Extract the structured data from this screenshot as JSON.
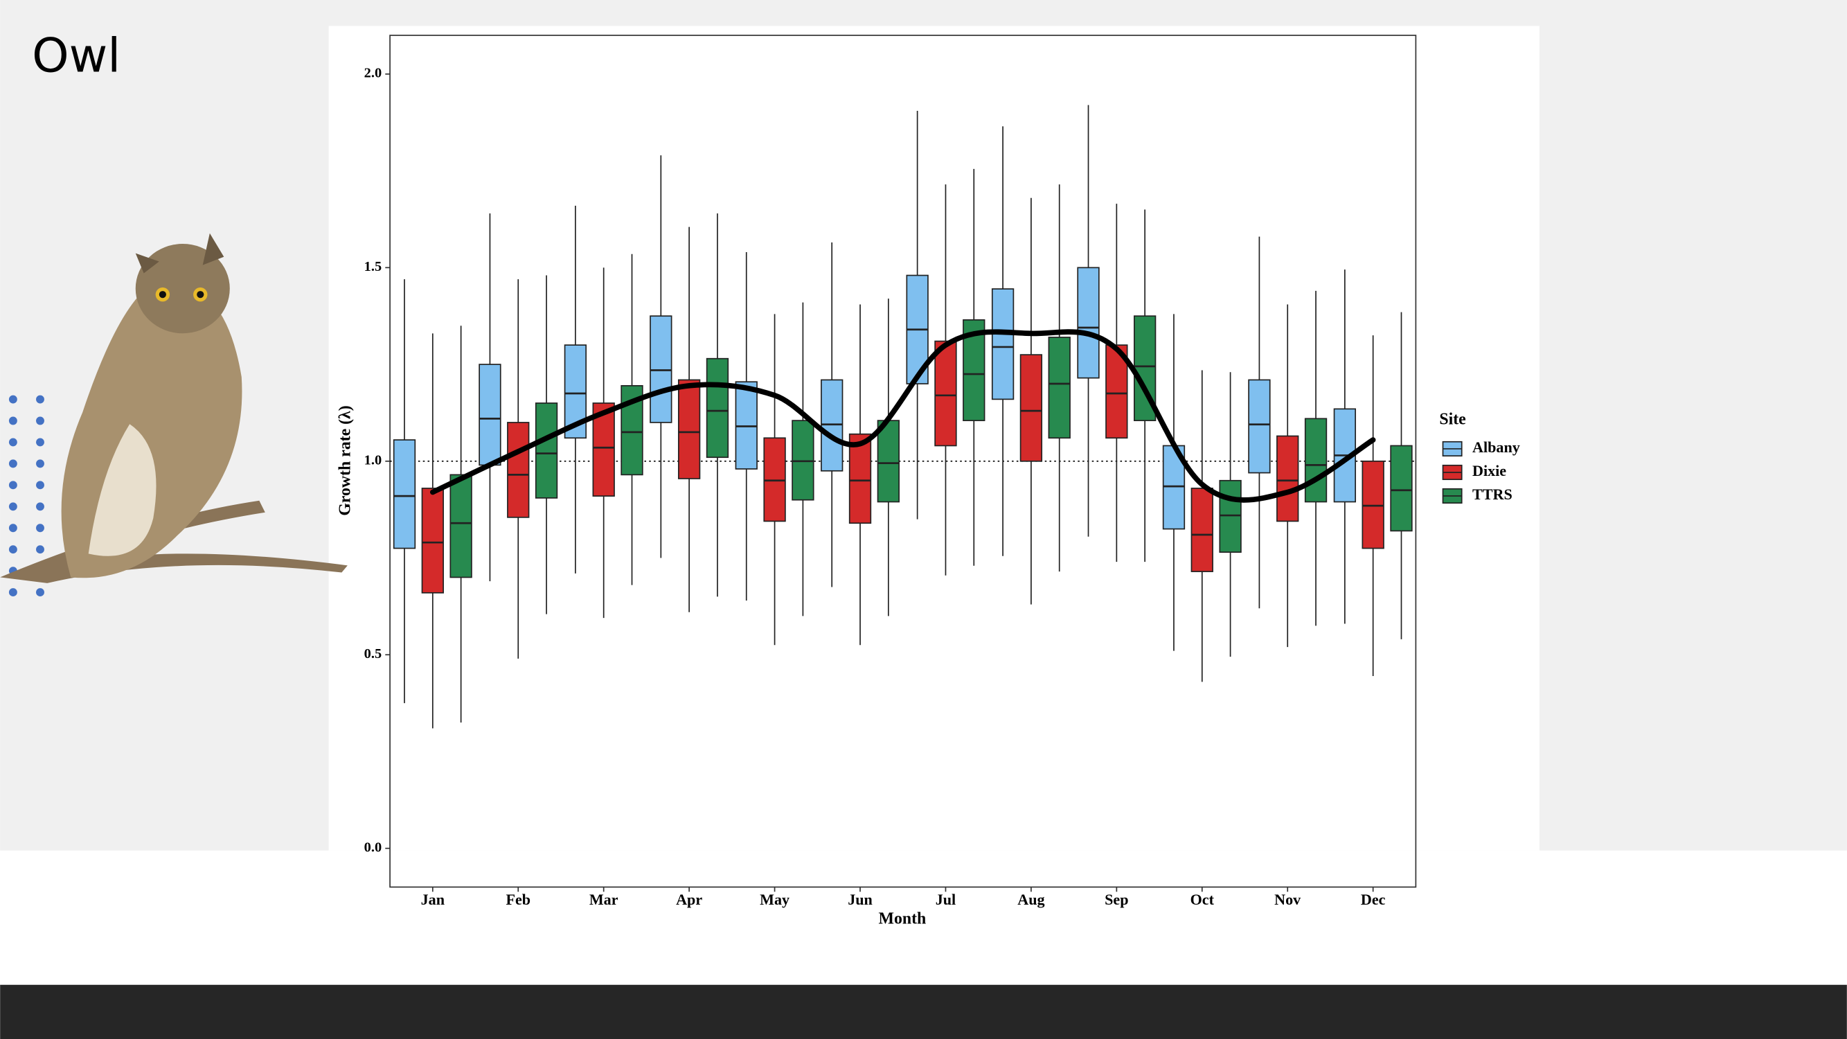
{
  "title": "Owl",
  "chart_data": {
    "type": "box",
    "x_label": "Month",
    "y_label": "Growth rate (λ)",
    "legend_title": "Site",
    "categories": [
      "Jan",
      "Feb",
      "Mar",
      "Apr",
      "May",
      "Jun",
      "Jul",
      "Aug",
      "Sep",
      "Oct",
      "Nov",
      "Dec"
    ],
    "ylim": [
      -0.1,
      2.1
    ],
    "yticks": [
      {
        "value": 0,
        "label": "0.0"
      },
      {
        "value": 0.5,
        "label": "0.5"
      },
      {
        "value": 1,
        "label": "1.0"
      },
      {
        "value": 1.5,
        "label": "1.5"
      },
      {
        "value": 2,
        "label": "2.0"
      }
    ],
    "hline": 1,
    "series": [
      {
        "name": "Albany",
        "color": "#7fbfef",
        "low": [
          0.375,
          0.69,
          0.71,
          0.75,
          0.64,
          0.675,
          0.85,
          0.755,
          0.805,
          0.51,
          0.62,
          0.58
        ],
        "q1": [
          0.775,
          0.99,
          1.06,
          1.1,
          0.98,
          0.975,
          1.2,
          1.16,
          1.215,
          0.825,
          0.97,
          0.895
        ],
        "median": [
          0.91,
          1.11,
          1.175,
          1.235,
          1.09,
          1.095,
          1.34,
          1.295,
          1.345,
          0.935,
          1.095,
          1.015
        ],
        "q3": [
          1.055,
          1.25,
          1.3,
          1.375,
          1.205,
          1.21,
          1.48,
          1.445,
          1.5,
          1.04,
          1.21,
          1.135
        ],
        "high": [
          1.47,
          1.64,
          1.66,
          1.79,
          1.54,
          1.565,
          1.905,
          1.865,
          1.92,
          1.38,
          1.58,
          1.495
        ]
      },
      {
        "name": "Dixie",
        "color": "#d42a2a",
        "low": [
          0.31,
          0.49,
          0.595,
          0.61,
          0.525,
          0.525,
          0.705,
          0.63,
          0.74,
          0.43,
          0.52,
          0.445
        ],
        "q1": [
          0.66,
          0.855,
          0.91,
          0.955,
          0.845,
          0.84,
          1.04,
          1.0,
          1.06,
          0.715,
          0.845,
          0.775
        ],
        "median": [
          0.79,
          0.965,
          1.035,
          1.075,
          0.95,
          0.95,
          1.17,
          1.13,
          1.175,
          0.81,
          0.95,
          0.885
        ],
        "q3": [
          0.93,
          1.1,
          1.15,
          1.21,
          1.06,
          1.07,
          1.31,
          1.275,
          1.3,
          0.93,
          1.065,
          1.0
        ],
        "high": [
          1.33,
          1.47,
          1.5,
          1.605,
          1.38,
          1.405,
          1.715,
          1.68,
          1.665,
          1.235,
          1.405,
          1.325
        ]
      },
      {
        "name": "TTRS",
        "color": "#278a4f",
        "low": [
          0.325,
          0.605,
          0.68,
          0.65,
          0.6,
          0.6,
          0.73,
          0.715,
          0.74,
          0.495,
          0.575,
          0.54
        ],
        "q1": [
          0.7,
          0.905,
          0.965,
          1.01,
          0.9,
          0.895,
          1.105,
          1.06,
          1.105,
          0.765,
          0.895,
          0.82
        ],
        "median": [
          0.84,
          1.02,
          1.075,
          1.13,
          1.0,
          0.995,
          1.225,
          1.2,
          1.245,
          0.86,
          0.99,
          0.925
        ],
        "q3": [
          0.965,
          1.15,
          1.195,
          1.265,
          1.105,
          1.105,
          1.365,
          1.32,
          1.375,
          0.95,
          1.11,
          1.04
        ],
        "high": [
          1.35,
          1.48,
          1.535,
          1.64,
          1.41,
          1.42,
          1.755,
          1.715,
          1.65,
          1.23,
          1.44,
          1.385
        ]
      }
    ],
    "trend": {
      "color": "#000000",
      "values": [
        0.92,
        1.025,
        1.125,
        1.195,
        1.17,
        1.045,
        1.3,
        1.33,
        1.29,
        0.94,
        0.92,
        1.055
      ]
    }
  }
}
